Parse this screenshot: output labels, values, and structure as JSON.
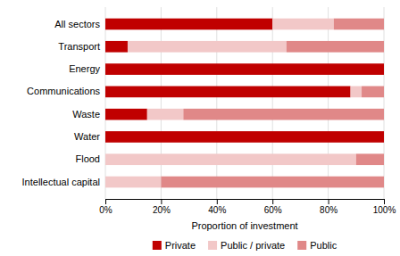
{
  "chart_data": {
    "type": "bar",
    "orientation": "horizontal",
    "stacked": true,
    "categories": [
      "All sectors",
      "Transport",
      "Energy",
      "Communications",
      "Waste",
      "Water",
      "Flood",
      "Intellectual capital"
    ],
    "series": [
      {
        "name": "Private",
        "color": "#c00000",
        "values": [
          60,
          8,
          100,
          88,
          15,
          100,
          0,
          0
        ]
      },
      {
        "name": "Public / private",
        "color": "#f2c8c8",
        "values": [
          22,
          57,
          0,
          4,
          13,
          0,
          90,
          20
        ]
      },
      {
        "name": "Public",
        "color": "#e08888",
        "values": [
          18,
          35,
          0,
          8,
          72,
          0,
          10,
          80
        ]
      }
    ],
    "x_label": "Proportion of investment",
    "xlim": [
      0,
      100
    ],
    "xticks": [
      {
        "value": 0,
        "label": "0%"
      },
      {
        "value": 20,
        "label": "20%"
      },
      {
        "value": 40,
        "label": "40%"
      },
      {
        "value": 60,
        "label": "60%"
      },
      {
        "value": 80,
        "label": "80%"
      },
      {
        "value": 100,
        "label": "100%"
      }
    ],
    "grid": true,
    "legend": "bottom"
  }
}
